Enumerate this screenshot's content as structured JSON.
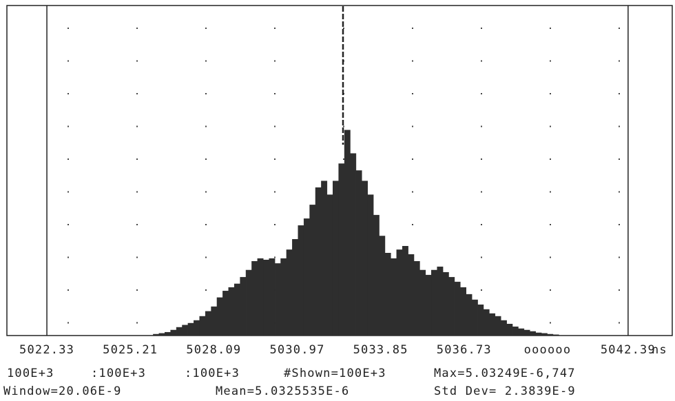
{
  "chart_data": {
    "type": "histogram",
    "xlabel": "ns",
    "color": "#2e2e2e",
    "xlim": [
      5020.95,
      5043.89
    ],
    "ylim": [
      0,
      1200
    ],
    "xticks": [
      5022.33,
      5025.21,
      5028.09,
      5030.97,
      5033.85,
      5036.73,
      {
        "value": 5039.61,
        "label": "oooooo"
      },
      5042.39
    ],
    "bins": [
      5026,
      5026.2,
      5026.4,
      5026.6,
      5026.8,
      5027,
      5027.2,
      5027.4,
      5027.6,
      5027.8,
      5028,
      5028.2,
      5028.4,
      5028.6,
      5028.8,
      5029,
      5029.2,
      5029.4,
      5029.6,
      5029.8,
      5030,
      5030.2,
      5030.4,
      5030.6,
      5030.8,
      5031,
      5031.2,
      5031.4,
      5031.6,
      5031.8,
      5032,
      5032.2,
      5032.4,
      5032.6,
      5032.8,
      5033,
      5033.2,
      5033.4,
      5033.6,
      5033.8,
      5034,
      5034.2,
      5034.4,
      5034.6,
      5034.8,
      5035,
      5035.2,
      5035.4,
      5035.6,
      5035.8,
      5036,
      5036.2,
      5036.4,
      5036.6,
      5036.8,
      5037,
      5037.2,
      5037.4,
      5037.6,
      5037.8,
      5038,
      5038.2,
      5038.4,
      5038.6,
      5038.8,
      5039,
      5039.2,
      5039.4,
      5039.6,
      5039.8,
      5040
    ],
    "values": [
      5,
      8,
      12,
      20,
      30,
      38,
      45,
      55,
      70,
      88,
      105,
      138,
      162,
      175,
      188,
      212,
      238,
      270,
      280,
      275,
      280,
      262,
      280,
      312,
      350,
      400,
      425,
      475,
      538,
      562,
      512,
      562,
      625,
      747,
      662,
      600,
      562,
      512,
      438,
      362,
      300,
      280,
      312,
      325,
      295,
      270,
      238,
      220,
      238,
      250,
      230,
      212,
      195,
      175,
      150,
      130,
      112,
      95,
      80,
      70,
      55,
      42,
      32,
      25,
      20,
      15,
      10,
      8,
      5,
      3
    ],
    "annotations": [
      "100E+3",
      ":100E+3",
      ":100E+3",
      "#Shown=100E+3",
      "Max=5.03249E-6",
      ",747",
      "Window=20.06E-9",
      "Mean=5.0325535E-6",
      "Std Dev= 2.3839E-9"
    ]
  }
}
